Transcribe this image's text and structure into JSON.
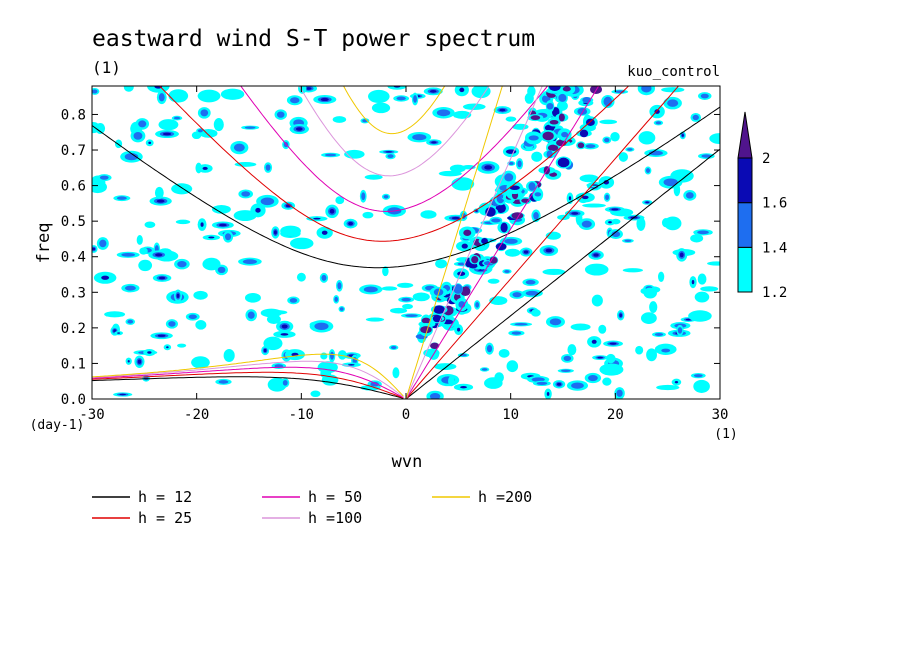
{
  "chart_data": {
    "type": "contour",
    "title": "eastward wind S-T power spectrum",
    "units": "(1)",
    "case_label": "kuo_control",
    "xlabel": "wvn",
    "ylabel": "freq",
    "x_unit": "(1)",
    "y_unit": "(day-1)",
    "xlim": [
      -30,
      30
    ],
    "ylim": [
      0,
      0.88
    ],
    "x_ticks": [
      -30,
      -20,
      -10,
      0,
      10,
      20,
      30
    ],
    "y_ticks": [
      0.0,
      0.1,
      0.2,
      0.3,
      0.4,
      0.5,
      0.6,
      0.7,
      0.8
    ],
    "x_tick_labels": [
      "-30",
      "-20",
      "-10",
      "0",
      "10",
      "20",
      "30"
    ],
    "y_tick_labels": [
      "0.0",
      "0.1",
      "0.2",
      "0.3",
      "0.4",
      "0.5",
      "0.6",
      "0.7",
      "0.8"
    ],
    "colorbar": {
      "levels": [
        1.2,
        1.4,
        1.6,
        2
      ],
      "labels": [
        "1.2",
        "1.4",
        "1.6",
        "2"
      ],
      "colors": [
        "#00ffff",
        "#1e6ef0",
        "#0a0ab4",
        "#50148c"
      ]
    },
    "series": [
      {
        "name": "h = 12",
        "h": 12,
        "color": "#000000"
      },
      {
        "name": "h = 25",
        "h": 25,
        "color": "#e00000"
      },
      {
        "name": "h = 50",
        "h": 50,
        "color": "#e000b4"
      },
      {
        "name": "h =100",
        "h": 100,
        "color": "#dc96dc"
      },
      {
        "name": "h =200",
        "h": 200,
        "color": "#f0c800"
      }
    ]
  }
}
